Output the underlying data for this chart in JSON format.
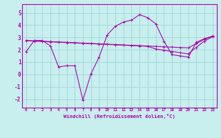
{
  "xlabel": "Windchill (Refroidissement éolien,°C)",
  "xlim": [
    -0.5,
    23.5
  ],
  "ylim": [
    -2.7,
    5.7
  ],
  "yticks": [
    -2,
    -1,
    0,
    1,
    2,
    3,
    4,
    5
  ],
  "xticks": [
    0,
    1,
    2,
    3,
    4,
    5,
    6,
    7,
    8,
    9,
    10,
    11,
    12,
    13,
    14,
    15,
    16,
    17,
    18,
    19,
    20,
    21,
    22,
    23
  ],
  "bg_color": "#c8eeee",
  "grid_color": "#a0d8d8",
  "line_color": "#aa00aa",
  "line1_y": [
    1.85,
    2.75,
    2.75,
    2.3,
    0.6,
    0.7,
    0.7,
    -2.1,
    0.05,
    1.4,
    3.2,
    3.9,
    4.25,
    4.4,
    4.85,
    4.6,
    4.1,
    2.7,
    1.6,
    1.5,
    1.4,
    2.6,
    2.9,
    3.1
  ],
  "line2_y": [
    2.75,
    2.72,
    2.69,
    2.66,
    2.63,
    2.6,
    2.57,
    2.54,
    2.51,
    2.48,
    2.45,
    2.42,
    2.39,
    2.36,
    2.33,
    2.3,
    2.27,
    2.24,
    2.21,
    2.18,
    2.15,
    2.5,
    2.85,
    3.1
  ],
  "line3_y": [
    2.75,
    2.7,
    2.67,
    2.64,
    2.61,
    2.58,
    2.55,
    2.52,
    2.49,
    2.46,
    2.43,
    2.4,
    2.37,
    2.34,
    2.31,
    2.28,
    2.06,
    1.96,
    1.86,
    1.76,
    1.66,
    2.2,
    2.7,
    3.05
  ]
}
